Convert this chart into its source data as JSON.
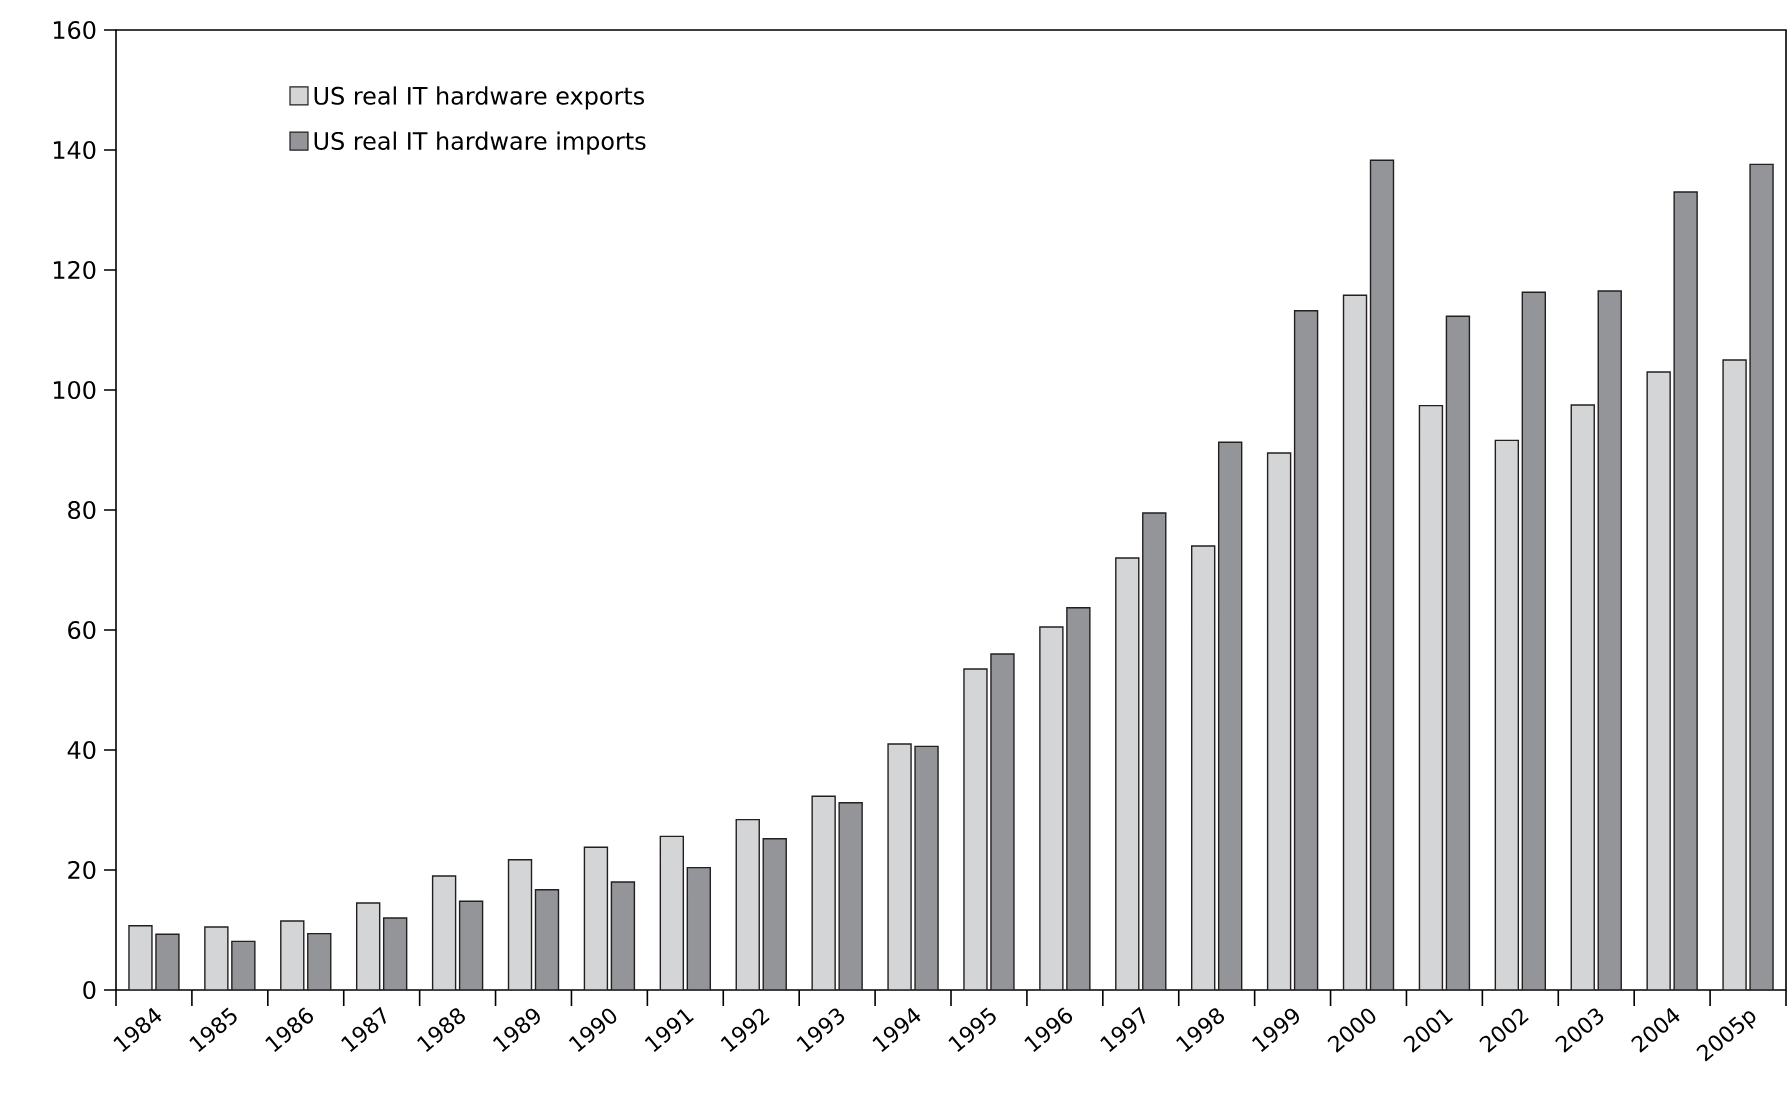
{
  "chart_data": {
    "type": "bar",
    "categories": [
      "1984",
      "1985",
      "1986",
      "1987",
      "1988",
      "1989",
      "1990",
      "1991",
      "1992",
      "1993",
      "1994",
      "1995",
      "1996",
      "1997",
      "1998",
      "1999",
      "2000",
      "2001",
      "2002",
      "2003",
      "2004",
      "2005p"
    ],
    "series": [
      {
        "name": "US real IT hardware exports",
        "color": "#d4d5d7",
        "values": [
          10.7,
          10.5,
          11.5,
          14.5,
          19,
          21.7,
          23.8,
          25.6,
          28.4,
          32.3,
          41,
          53.5,
          60.5,
          72,
          74,
          89.5,
          115.8,
          97.4,
          91.6,
          97.5,
          103,
          105
        ]
      },
      {
        "name": "US real IT hardware imports",
        "color": "#949599",
        "values": [
          9.3,
          8.1,
          9.4,
          12,
          14.8,
          16.7,
          18,
          20.4,
          25.2,
          31.2,
          40.6,
          56,
          63.7,
          79.5,
          91.3,
          113.2,
          138.3,
          112.3,
          116.3,
          116.5,
          133,
          137.6
        ]
      }
    ],
    "ylim": [
      0,
      160
    ],
    "yticks": [
      0,
      20,
      40,
      60,
      80,
      100,
      120,
      140,
      160
    ],
    "grid": false,
    "legend": "top left"
  }
}
